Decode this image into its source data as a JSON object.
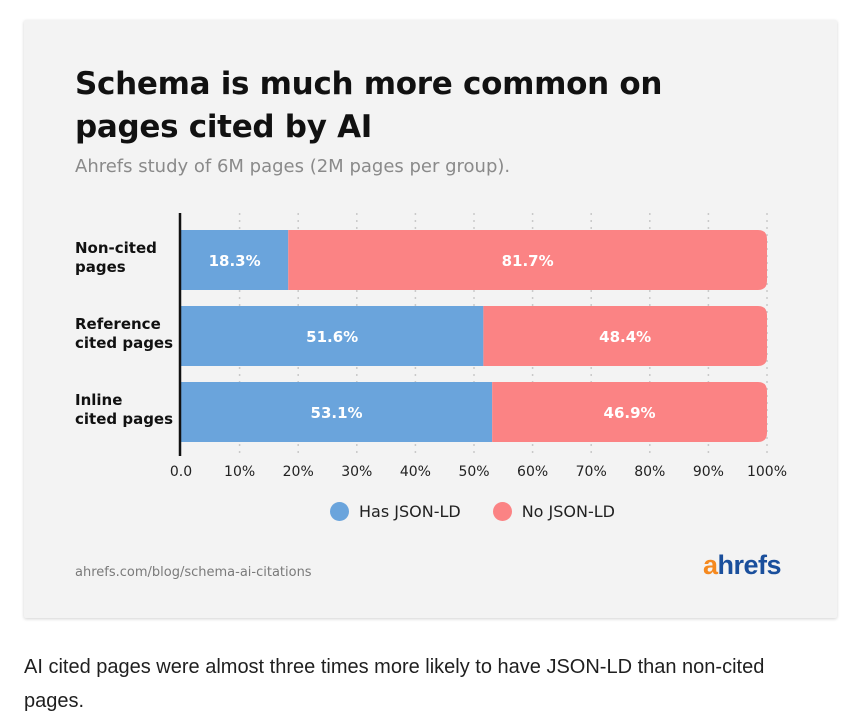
{
  "chart_data": {
    "type": "bar",
    "orientation": "horizontal",
    "stacked": true,
    "title": "Schema is much more common on pages cited by AI",
    "subtitle": "Ahrefs study of 6M pages (2M pages per group).",
    "categories": [
      [
        "Non-cited",
        "pages"
      ],
      [
        "Reference",
        "cited pages"
      ],
      [
        "Inline",
        "cited pages"
      ]
    ],
    "series": [
      {
        "name": "Has JSON-LD",
        "color": "#6aa4dc",
        "values": [
          18.3,
          51.6,
          53.1
        ],
        "labels": [
          "18.3%",
          "51.6%",
          "53.1%"
        ]
      },
      {
        "name": "No JSON-LD",
        "color": "#fb8384",
        "values": [
          81.7,
          48.4,
          46.9
        ],
        "labels": [
          "81.7%",
          "48.4%",
          "46.9%"
        ]
      }
    ],
    "xlim": [
      0,
      100
    ],
    "xticks": [
      0,
      10,
      20,
      30,
      40,
      50,
      60,
      70,
      80,
      90,
      100
    ],
    "xtick_labels": [
      "0.0",
      "10%",
      "20%",
      "30%",
      "40%",
      "50%",
      "60%",
      "70%",
      "80%",
      "90%",
      "100%"
    ],
    "grid": "vertical dotted",
    "legend_position": "bottom"
  },
  "source_url": "ahrefs.com/blog/schema-ai-citations",
  "logo": {
    "a": "a",
    "rest": "hrefs",
    "colors": {
      "a": "#f5891f",
      "rest": "#1a4f9c"
    }
  },
  "caption": "AI cited pages were almost three times more likely to have JSON-LD than non-cited pages."
}
